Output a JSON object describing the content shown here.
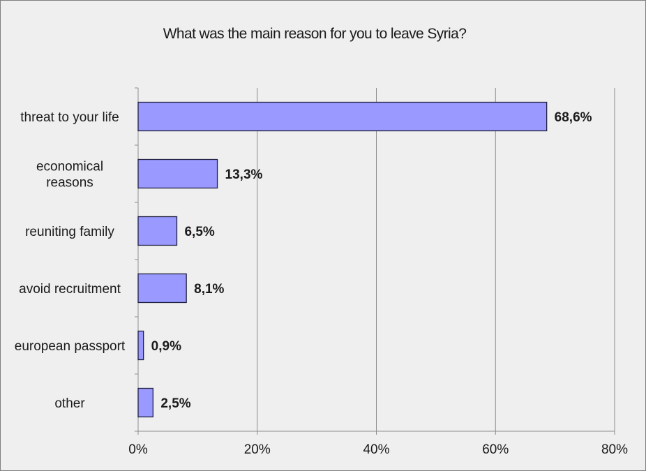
{
  "chart_data": {
    "type": "bar",
    "orientation": "horizontal",
    "title": "What was the main reason for you to leave Syria?",
    "categories": [
      [
        "threat to your life"
      ],
      [
        "economical",
        "reasons"
      ],
      [
        "reuniting family"
      ],
      [
        "avoid recruitment"
      ],
      [
        "european passport"
      ],
      [
        "other"
      ]
    ],
    "values": [
      68.6,
      13.3,
      6.5,
      8.1,
      0.9,
      2.5
    ],
    "data_labels": [
      "68,6%",
      "13,3%",
      "6,5%",
      "8,1%",
      "0,9%",
      "2,5%"
    ],
    "xlim": [
      0,
      80
    ],
    "xticks": [
      0,
      20,
      40,
      60,
      80
    ],
    "xtick_labels": [
      "0%",
      "20%",
      "40%",
      "60%",
      "80%"
    ],
    "grid": "vertical",
    "legend": "none",
    "colors": {
      "bar_fill": "#9999ff",
      "bar_stroke": "#1f1f3f",
      "grid": "#8c8c8c",
      "axis": "#8c8c8c",
      "plot_background": "#efefef"
    }
  }
}
